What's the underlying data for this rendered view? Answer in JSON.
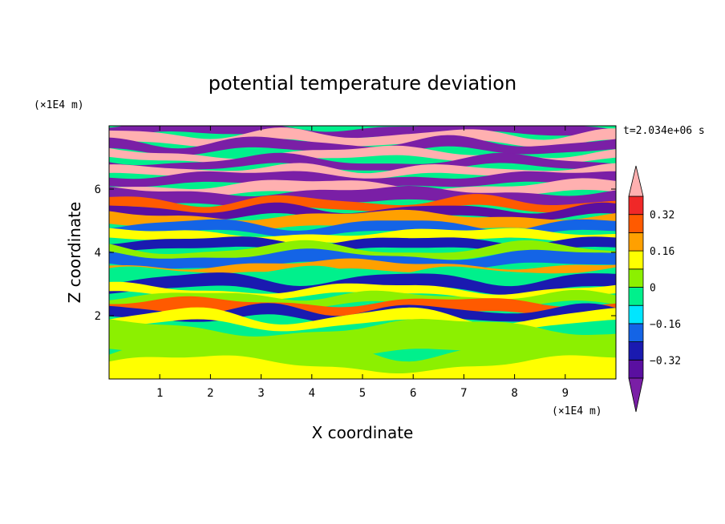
{
  "chart_data": {
    "type": "heatmap",
    "title": "potential temperature deviation",
    "xlabel": "X coordinate",
    "ylabel": "Z coordinate",
    "x_unit": "(×1E4 m)",
    "y_unit": "(×1E4 m)",
    "time_label": "t=2.034e+06 s",
    "xlim": [
      0,
      10
    ],
    "ylim": [
      0,
      8
    ],
    "x_ticks": [
      "1",
      "2",
      "3",
      "4",
      "5",
      "6",
      "7",
      "8",
      "9"
    ],
    "y_ticks": [
      "2",
      "4",
      "6"
    ],
    "colorbar": {
      "levels": [
        -0.4,
        -0.32,
        -0.24,
        -0.16,
        -0.08,
        0,
        0.08,
        0.16,
        0.24,
        0.32,
        0.4
      ],
      "labels": [
        "0.32",
        "0.16",
        "0",
        "−0.16",
        "−0.32"
      ],
      "label_values": [
        0.32,
        0.16,
        0,
        -0.16,
        -0.32
      ],
      "colors": [
        "#7a1fa6",
        "#5a0fa0",
        "#1a1ab0",
        "#1464e6",
        "#00e6ff",
        "#00f08c",
        "#8cf000",
        "#ffff00",
        "#ffa000",
        "#ff5a00",
        "#f02828",
        "#ffb0b0"
      ],
      "extend": "both"
    },
    "bands": [
      {
        "z": 7.85,
        "value": -0.45
      },
      {
        "z": 7.6,
        "value": 0.45
      },
      {
        "z": 7.35,
        "value": -0.45
      },
      {
        "z": 7.05,
        "value": 0.45
      },
      {
        "z": 6.8,
        "value": -0.45
      },
      {
        "z": 6.55,
        "value": 0.42
      },
      {
        "z": 6.3,
        "value": -0.45
      },
      {
        "z": 6.0,
        "value": 0.42
      },
      {
        "z": 5.75,
        "value": -0.42
      },
      {
        "z": 5.5,
        "value": 0.3
      },
      {
        "z": 5.25,
        "value": -0.38
      },
      {
        "z": 5.0,
        "value": 0.2
      },
      {
        "z": 4.75,
        "value": -0.2
      },
      {
        "z": 4.5,
        "value": 0.12
      },
      {
        "z": 4.25,
        "value": -0.28
      },
      {
        "z": 4.0,
        "value": 0.04
      },
      {
        "z": 3.75,
        "value": -0.24
      },
      {
        "z": 3.5,
        "value": 0.2
      },
      {
        "z": 3.25,
        "value": -0.05
      },
      {
        "z": 3.0,
        "value": -0.3
      },
      {
        "z": 2.75,
        "value": 0.15
      },
      {
        "z": 2.5,
        "value": 0.05
      },
      {
        "z": 2.25,
        "value": 0.24
      },
      {
        "z": 2.05,
        "value": -0.3
      },
      {
        "z": 1.85,
        "value": 0.12
      },
      {
        "z": 1.2,
        "value": 0.04
      },
      {
        "z": 0.4,
        "value": 0.02
      },
      {
        "z": 0.05,
        "value": 0.08
      }
    ]
  }
}
